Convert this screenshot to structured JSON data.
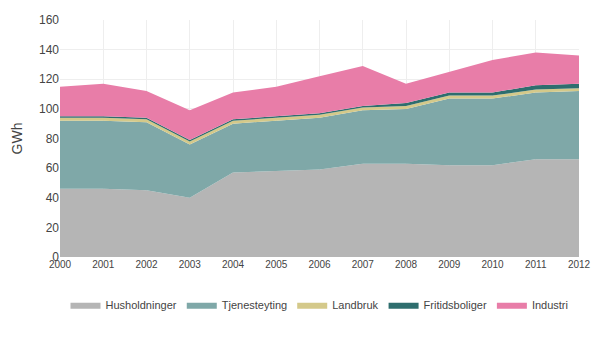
{
  "chart_data": {
    "type": "area",
    "stacked": true,
    "x": [
      2000,
      2001,
      2002,
      2003,
      2004,
      2005,
      2006,
      2007,
      2008,
      2009,
      2010,
      2011,
      2012
    ],
    "series": [
      {
        "name": "Husholdninger",
        "color": "#b5b5b5",
        "values": [
          46,
          46,
          45,
          40,
          57,
          58,
          59,
          63,
          63,
          62,
          62,
          66,
          66
        ]
      },
      {
        "name": "Tjenesteyting",
        "color": "#7fa8a8",
        "values": [
          46,
          46,
          46,
          36,
          33,
          34,
          35,
          36,
          37,
          45,
          45,
          45,
          46
        ]
      },
      {
        "name": "Landbruk",
        "color": "#d4c98a",
        "values": [
          2,
          2,
          2,
          2,
          2,
          2,
          2,
          2,
          2,
          2,
          2,
          2,
          2
        ]
      },
      {
        "name": "Fritidsboliger",
        "color": "#2e6e6e",
        "values": [
          1,
          1,
          1,
          1,
          1,
          1,
          1,
          1,
          2,
          2,
          2,
          3,
          3
        ]
      },
      {
        "name": "Industri",
        "color": "#e87da8",
        "values": [
          20,
          22,
          18,
          20,
          18,
          20,
          25,
          27,
          13,
          14,
          22,
          22,
          19
        ]
      }
    ],
    "xlim": [
      2000,
      2012
    ],
    "xticks": [
      2000,
      2001,
      2002,
      2003,
      2004,
      2005,
      2006,
      2007,
      2008,
      2009,
      2010,
      2011,
      2012
    ],
    "ylim": [
      0,
      160
    ],
    "yticks": [
      0,
      20,
      40,
      60,
      80,
      100,
      120,
      140,
      160
    ],
    "y_label": "GWh",
    "grid": true,
    "legend": "bottom"
  }
}
